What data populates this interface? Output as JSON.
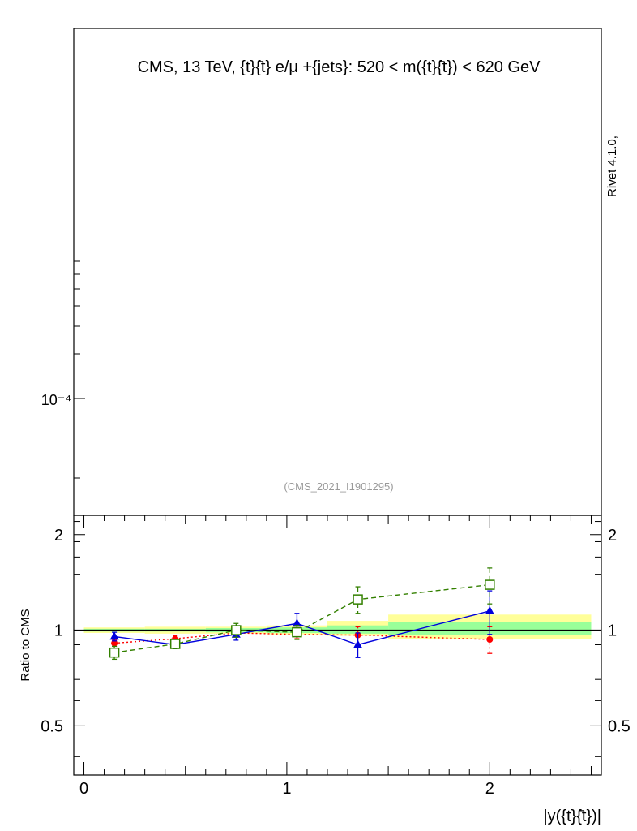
{
  "title": "CMS, 13 TeV, {t}{̄t} e/μ +{jets}: 520 < m({t}{̄t}) < 620 GeV",
  "side_label": "Rivet 4.1.0,",
  "watermark": "(CMS_2021_I1901295)",
  "top_tick_label": "10⁻⁴",
  "chart_data": {
    "type": "line",
    "ylabel": "Ratio to CMS",
    "xlabel": "|y({t}{̄t})|",
    "xlim": [
      -0.05,
      2.55
    ],
    "ylim": [
      0.35,
      2.3
    ],
    "x_ticks": [
      0,
      1,
      2
    ],
    "x_tick_labels": [
      "0",
      "1",
      "2"
    ],
    "y_ticks": [
      0.5,
      1,
      2
    ],
    "y_tick_labels": [
      "0.5",
      "1",
      "2"
    ],
    "band_edges": [
      0,
      0.3,
      0.6,
      0.9,
      1.2,
      1.5,
      2.5
    ],
    "band_outer": [
      [
        0.98,
        1.02
      ],
      [
        0.975,
        1.025
      ],
      [
        0.975,
        1.025
      ],
      [
        0.97,
        1.035
      ],
      [
        0.96,
        1.07
      ],
      [
        0.94,
        1.12
      ]
    ],
    "band_inner": [
      [
        0.99,
        1.01
      ],
      [
        0.99,
        1.01
      ],
      [
        0.985,
        1.015
      ],
      [
        0.98,
        1.02
      ],
      [
        0.975,
        1.035
      ],
      [
        0.965,
        1.06
      ]
    ],
    "series": [
      {
        "color": "#ff0000",
        "dash": "2,3",
        "marker": "circle",
        "x": [
          0.15,
          0.45,
          0.75,
          1.05,
          1.35,
          2.0
        ],
        "y": [
          0.91,
          0.94,
          0.98,
          0.97,
          0.965,
          0.935
        ],
        "err": [
          0.02,
          0.02,
          0.02,
          0.03,
          0.06,
          0.09
        ]
      },
      {
        "color": "#0000dd",
        "dash": "",
        "marker": "triangle",
        "x": [
          0.15,
          0.45,
          0.75,
          1.05,
          1.35,
          2.0
        ],
        "y": [
          0.955,
          0.9,
          0.97,
          1.05,
          0.9,
          1.15
        ],
        "err": [
          0.03,
          0.025,
          0.04,
          0.08,
          0.08,
          0.18
        ]
      },
      {
        "color": "#338000",
        "dash": "6,4",
        "marker": "square",
        "x": [
          0.15,
          0.45,
          0.75,
          1.05,
          1.35,
          2.0
        ],
        "y": [
          0.85,
          0.905,
          1.0,
          0.985,
          1.25,
          1.39
        ],
        "err": [
          0.04,
          0.03,
          0.05,
          0.05,
          0.12,
          0.18
        ]
      }
    ]
  }
}
